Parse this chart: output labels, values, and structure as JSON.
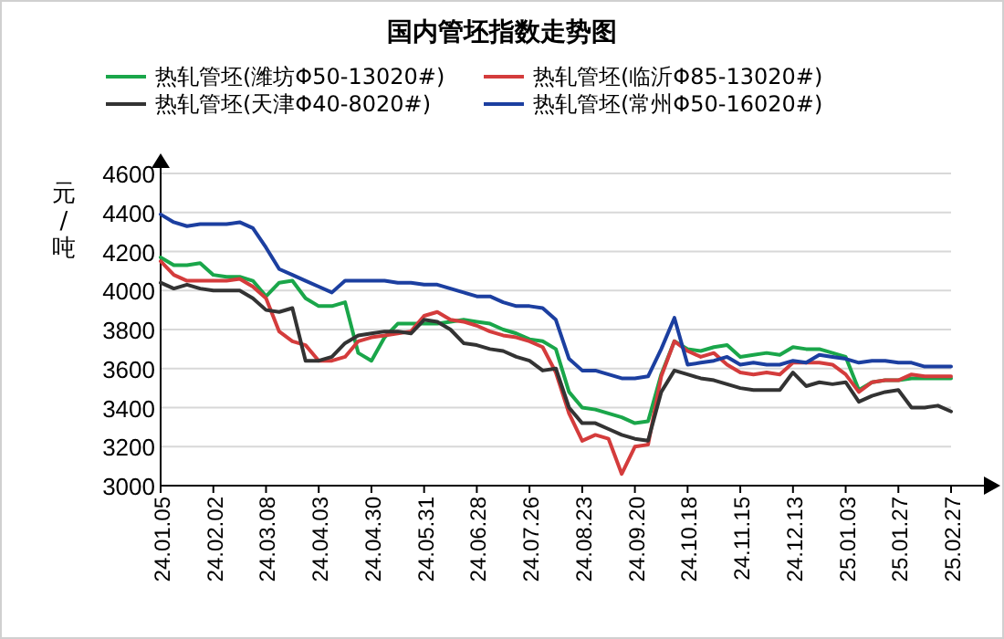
{
  "chart_data": {
    "type": "line",
    "title": "国内管坯指数走势图",
    "ylabel": "元/吨",
    "categories": [
      "24.01.05",
      null,
      null,
      null,
      "24.02.02",
      null,
      null,
      null,
      "24.03.08",
      null,
      null,
      null,
      "24.04.03",
      null,
      null,
      null,
      "24.04.30",
      null,
      null,
      null,
      "24.05.31",
      null,
      null,
      null,
      "24.06.28",
      null,
      null,
      null,
      "24.07.26",
      null,
      null,
      null,
      "24.08.23",
      null,
      null,
      null,
      "24.09.20",
      null,
      null,
      null,
      "24.10.18",
      null,
      null,
      null,
      "24.11.15",
      null,
      null,
      null,
      "24.12.13",
      null,
      null,
      null,
      "25.01.03",
      null,
      null,
      null,
      "25.01.27",
      null,
      null,
      null,
      "25.02.27"
    ],
    "series": [
      {
        "name": "热轧管坯(潍坊Φ50-13020#)",
        "color": "#1aa64a",
        "values": [
          4170,
          4130,
          4130,
          4140,
          4080,
          4070,
          4070,
          4050,
          3970,
          4040,
          4050,
          3960,
          3920,
          3920,
          3940,
          3680,
          3640,
          3760,
          3830,
          3830,
          3830,
          3830,
          3840,
          3850,
          3840,
          3830,
          3800,
          3780,
          3750,
          3740,
          3700,
          3480,
          3400,
          3390,
          3370,
          3350,
          3320,
          3330,
          3570,
          3740,
          3700,
          3690,
          3710,
          3720,
          3660,
          3670,
          3680,
          3670,
          3710,
          3700,
          3700,
          3680,
          3660,
          3490,
          3530,
          3540,
          3540,
          3550,
          3550,
          3550,
          3550
        ]
      },
      {
        "name": "热轧管坯(临沂Φ85-13020#)",
        "color": "#d43c3c",
        "values": [
          4150,
          4080,
          4050,
          4050,
          4050,
          4050,
          4060,
          4020,
          3960,
          3790,
          3740,
          3720,
          3640,
          3640,
          3660,
          3740,
          3760,
          3770,
          3780,
          3790,
          3870,
          3890,
          3850,
          3840,
          3820,
          3790,
          3770,
          3760,
          3740,
          3710,
          3580,
          3370,
          3230,
          3260,
          3240,
          3060,
          3200,
          3210,
          3560,
          3740,
          3690,
          3660,
          3680,
          3620,
          3580,
          3570,
          3580,
          3570,
          3630,
          3630,
          3630,
          3620,
          3570,
          3480,
          3530,
          3540,
          3540,
          3570,
          3560,
          3560,
          3560
        ]
      },
      {
        "name": "热轧管坯(天津Φ40-8020#)",
        "color": "#333333",
        "values": [
          4040,
          4010,
          4030,
          4010,
          4000,
          4000,
          4000,
          3960,
          3900,
          3890,
          3910,
          3640,
          3640,
          3660,
          3730,
          3770,
          3780,
          3790,
          3790,
          3780,
          3850,
          3840,
          3800,
          3730,
          3720,
          3700,
          3690,
          3660,
          3640,
          3590,
          3600,
          3400,
          3320,
          3320,
          3290,
          3260,
          3240,
          3230,
          3480,
          3590,
          3570,
          3550,
          3540,
          3520,
          3500,
          3490,
          3490,
          3490,
          3580,
          3510,
          3530,
          3520,
          3530,
          3430,
          3460,
          3480,
          3490,
          3400,
          3400,
          3410,
          3380
        ]
      },
      {
        "name": "热轧管坯(常州Φ50-16020#)",
        "color": "#1c3fa0",
        "values": [
          4390,
          4350,
          4330,
          4340,
          4340,
          4340,
          4350,
          4320,
          4220,
          4110,
          4080,
          4050,
          4020,
          3990,
          4050,
          4050,
          4050,
          4050,
          4040,
          4040,
          4030,
          4030,
          4010,
          3990,
          3970,
          3970,
          3940,
          3920,
          3920,
          3910,
          3850,
          3650,
          3590,
          3590,
          3570,
          3550,
          3550,
          3560,
          3700,
          3860,
          3620,
          3630,
          3640,
          3660,
          3620,
          3630,
          3620,
          3620,
          3640,
          3630,
          3670,
          3660,
          3650,
          3630,
          3640,
          3640,
          3630,
          3630,
          3610,
          3610,
          3610
        ]
      }
    ],
    "ylim": [
      3000,
      4600
    ],
    "yticks": [
      3000,
      3200,
      3400,
      3600,
      3800,
      4000,
      4200,
      4400,
      4600
    ],
    "grid": "y",
    "legend": "top",
    "line_style": "solid",
    "marker": "none"
  }
}
